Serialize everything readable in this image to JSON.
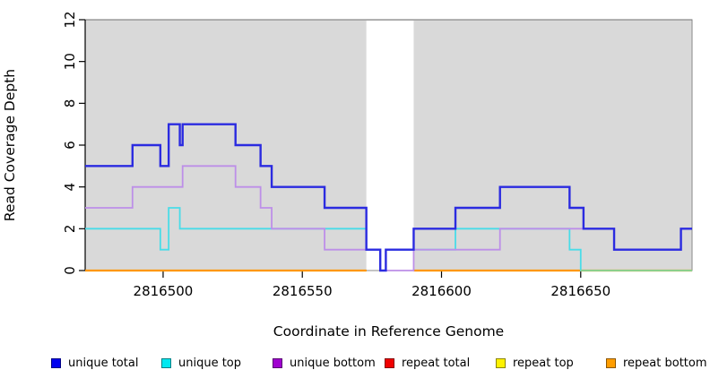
{
  "chart_data": {
    "type": "line",
    "step": true,
    "title": "",
    "xlabel": "Coordinate in Reference Genome",
    "ylabel": "Read Coverage Depth",
    "xlim": [
      2816472,
      2816690
    ],
    "ylim": [
      0,
      12
    ],
    "x_ticks": [
      2816500,
      2816550,
      2816600,
      2816650
    ],
    "y_ticks": [
      0,
      2,
      4,
      6,
      8,
      10,
      12
    ],
    "panel_bg": "#d9d9d9",
    "grid": "off",
    "legend_position": "bottom",
    "masked_region": {
      "x0": 2816573,
      "x1": 2816590,
      "color": "#ffffff"
    },
    "series": [
      {
        "name": "repeat total",
        "color": "#e00000",
        "width": 2,
        "value": 0,
        "segments": [
          [
            2816472,
            2816573
          ],
          [
            2816590,
            2816690
          ]
        ]
      },
      {
        "name": "repeat top",
        "color": "#f5f500",
        "width": 2,
        "value": 0,
        "segments": [
          [
            2816472,
            2816573
          ],
          [
            2816590,
            2816690
          ]
        ]
      },
      {
        "name": "repeat bottom",
        "color": "#ff9700",
        "width": 2.2,
        "value": 0,
        "segments": [
          [
            2816472,
            2816573
          ],
          [
            2816590,
            2816690
          ]
        ]
      },
      {
        "name": "unique top",
        "color": "#49dce8",
        "width": 1.8,
        "xend": 2816690,
        "steps": [
          [
            2816472,
            2
          ],
          [
            2816499,
            1
          ],
          [
            2816502,
            3
          ],
          [
            2816506,
            2
          ],
          [
            2816573,
            1
          ],
          [
            2816578,
            0
          ],
          [
            2816580,
            1
          ],
          [
            2816605,
            2
          ],
          [
            2816646,
            1
          ],
          [
            2816650,
            0
          ]
        ]
      },
      {
        "name": "unique bottom",
        "color": "#bd8fe8",
        "width": 1.8,
        "xend": 2816690,
        "steps": [
          [
            2816472,
            3
          ],
          [
            2816489,
            4
          ],
          [
            2816507,
            5
          ],
          [
            2816526,
            4
          ],
          [
            2816535,
            3
          ],
          [
            2816539,
            2
          ],
          [
            2816558,
            1
          ],
          [
            2816578,
            0
          ],
          [
            2816590,
            1
          ],
          [
            2816621,
            2
          ],
          [
            2816662,
            1
          ],
          [
            2816686,
            2
          ]
        ]
      },
      {
        "name": "unique total",
        "color": "#2b2be0",
        "width": 2.4,
        "xend": 2816690,
        "steps": [
          [
            2816472,
            5
          ],
          [
            2816489,
            6
          ],
          [
            2816499,
            5
          ],
          [
            2816502,
            7
          ],
          [
            2816506,
            6
          ],
          [
            2816507,
            7
          ],
          [
            2816526,
            6
          ],
          [
            2816535,
            5
          ],
          [
            2816539,
            4
          ],
          [
            2816558,
            3
          ],
          [
            2816573,
            1
          ],
          [
            2816578,
            0
          ],
          [
            2816580,
            1
          ],
          [
            2816590,
            2
          ],
          [
            2816605,
            3
          ],
          [
            2816621,
            4
          ],
          [
            2816646,
            3
          ],
          [
            2816651,
            2
          ],
          [
            2816662,
            1
          ],
          [
            2816686,
            2
          ]
        ]
      }
    ],
    "overlap_baseline_segment": {
      "x0": 2816650,
      "x1": 2816690,
      "value": 0,
      "color": "#8ccf8c"
    },
    "legend": [
      {
        "label": "unique total",
        "color": "#0000f0"
      },
      {
        "label": "unique top",
        "color": "#00e8f0"
      },
      {
        "label": "unique bottom",
        "color": "#a001d0"
      },
      {
        "label": "repeat total",
        "color": "#f00000"
      },
      {
        "label": "repeat top",
        "color": "#fff200"
      },
      {
        "label": "repeat bottom",
        "color": "#ff9d00"
      }
    ]
  }
}
